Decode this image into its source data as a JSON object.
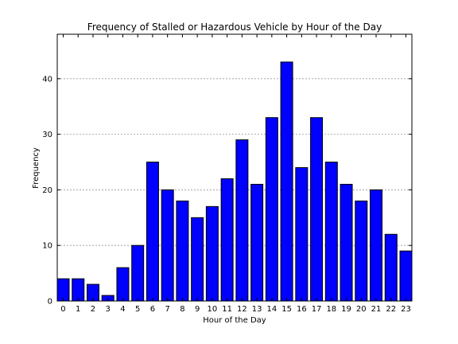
{
  "chart_data": {
    "type": "bar",
    "title": "Frequency of Stalled or Hazardous Vehicle by Hour of the Day",
    "xlabel": "Hour of the Day",
    "ylabel": "Frequency",
    "categories": [
      "0",
      "1",
      "2",
      "3",
      "4",
      "5",
      "6",
      "7",
      "8",
      "9",
      "10",
      "11",
      "12",
      "13",
      "14",
      "15",
      "16",
      "17",
      "18",
      "19",
      "20",
      "21",
      "22",
      "23"
    ],
    "values": [
      4,
      4,
      3,
      1,
      6,
      10,
      25,
      20,
      18,
      15,
      17,
      22,
      29,
      21,
      33,
      43,
      24,
      33,
      25,
      21,
      18,
      20,
      12,
      9
    ],
    "ylim": [
      0,
      48
    ],
    "yticks": [
      0,
      10,
      20,
      30,
      40
    ],
    "grid": true,
    "bar_color": "#0000ff"
  }
}
